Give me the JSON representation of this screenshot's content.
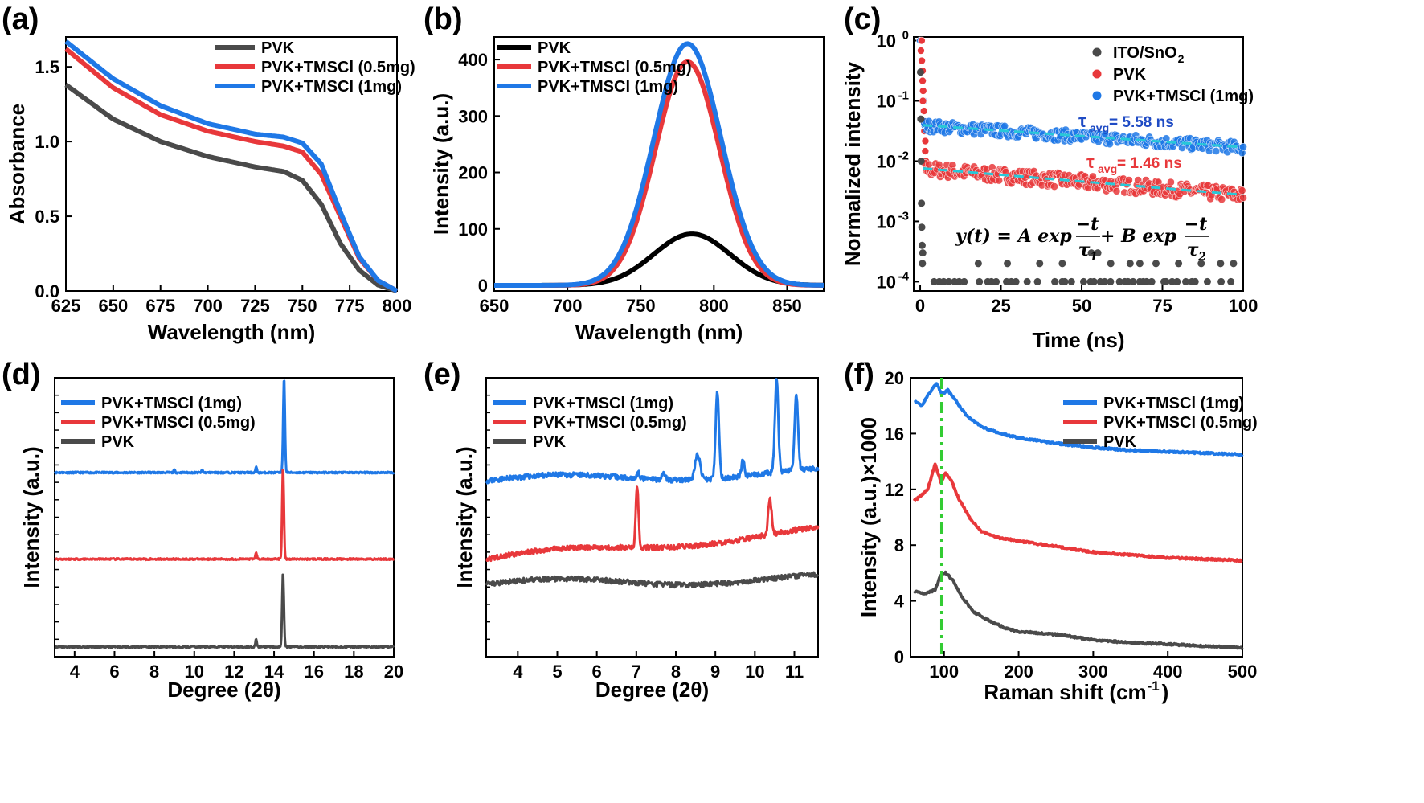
{
  "colors": {
    "black": "#000000",
    "gray": "#4a4a4a",
    "red": "#e8383b",
    "blue": "#1f78e6",
    "cyan": "#28c8d8",
    "green": "#33cc33"
  },
  "chart_data": [
    {
      "id": "a",
      "type": "line",
      "panel_label": "(a)",
      "xlabel": "Wavelength (nm)",
      "ylabel": "Absorbance",
      "xlim": [
        625,
        800
      ],
      "ylim": [
        0,
        1.7
      ],
      "xticks": [
        625,
        650,
        675,
        700,
        725,
        750,
        775,
        800
      ],
      "yticks": [
        0.0,
        0.5,
        1.0,
        1.5
      ],
      "legend": "top-right",
      "series": [
        {
          "name": "PVK",
          "color": "#4a4a4a",
          "x": [
            625,
            650,
            675,
            700,
            725,
            740,
            750,
            760,
            770,
            780,
            790,
            800
          ],
          "y": [
            1.38,
            1.15,
            1.0,
            0.9,
            0.83,
            0.8,
            0.74,
            0.58,
            0.32,
            0.14,
            0.04,
            0.0
          ]
        },
        {
          "name": "PVK+TMSCl (0.5mg)",
          "color": "#e8383b",
          "x": [
            625,
            650,
            675,
            700,
            725,
            740,
            750,
            760,
            770,
            780,
            790,
            800
          ],
          "y": [
            1.62,
            1.36,
            1.18,
            1.07,
            1.0,
            0.97,
            0.93,
            0.78,
            0.5,
            0.22,
            0.07,
            0.0
          ]
        },
        {
          "name": "PVK+TMSCl (1mg)",
          "color": "#1f78e6",
          "x": [
            625,
            650,
            675,
            700,
            725,
            740,
            750,
            760,
            770,
            780,
            790,
            800
          ],
          "y": [
            1.67,
            1.42,
            1.24,
            1.12,
            1.05,
            1.03,
            0.99,
            0.85,
            0.53,
            0.23,
            0.07,
            0.0
          ]
        }
      ]
    },
    {
      "id": "b",
      "type": "line",
      "panel_label": "(b)",
      "xlabel": "Wavelength (nm)",
      "ylabel": "Intensity (a.u.)",
      "xlim": [
        650,
        875
      ],
      "ylim": [
        -10,
        440
      ],
      "xticks": [
        650,
        700,
        750,
        800,
        850
      ],
      "yticks": [
        0,
        100,
        200,
        300,
        400
      ],
      "legend": "top-left",
      "series": [
        {
          "name": "PVK",
          "color": "#000000",
          "peak_x": 785,
          "peak_y": 91,
          "width": 26
        },
        {
          "name": "PVK+TMSCl (0.5mg)",
          "color": "#e8383b",
          "peak_x": 782,
          "peak_y": 396,
          "width": 22
        },
        {
          "name": "PVK+TMSCl (1mg)",
          "color": "#1f78e6",
          "peak_x": 782,
          "peak_y": 428,
          "width": 23
        }
      ]
    },
    {
      "id": "c",
      "type": "scatter",
      "panel_label": "(c)",
      "xlabel": "Time (ns)",
      "ylabel": "Normalized intensity",
      "xlim": [
        -2,
        100
      ],
      "ylim": [
        7e-05,
        1.15
      ],
      "yscale": "log",
      "xticks": [
        0,
        25,
        50,
        75,
        100
      ],
      "yticks": [
        {
          "value": 1,
          "label": "10",
          "exp": "0"
        },
        {
          "value": 0.1,
          "label": "10",
          "exp": "-1"
        },
        {
          "value": 0.01,
          "label": "10",
          "exp": "-2"
        },
        {
          "value": 0.001,
          "label": "10",
          "exp": "-3"
        },
        {
          "value": 0.0001,
          "label": "10",
          "exp": "-4"
        }
      ],
      "legend": "top-right",
      "series": [
        {
          "name_main": "ITO/SnO",
          "name_sub": "2",
          "color": "#4a4a4a",
          "start": 0.002,
          "floor": 0.0001
        },
        {
          "name_main": "PVK",
          "name_sub": "",
          "color": "#e8383b",
          "amp": 0.0075,
          "tau": 98
        },
        {
          "name_main": "PVK+TMSCl (1mg)",
          "name_sub": "",
          "color": "#1f78e6",
          "amp": 0.039,
          "tau": 118
        }
      ],
      "fit_color": "#28c8d8",
      "annotations": [
        {
          "symbol": "τ",
          "sub": "avg",
          "value": "= 5.58 ns",
          "color": "#1f4bc4"
        },
        {
          "symbol": "τ",
          "sub": "avg",
          "value": "= 1.46 ns",
          "color": "#e8383b"
        }
      ],
      "formula": "y(t) = A exp(−t/τ1) + B exp(−t/τ2)",
      "formula_parts": {
        "lhs": "y(t) = A exp",
        "plus": "+ B exp",
        "num": "−t",
        "den1": "τ",
        "den1_sub": "1",
        "den2": "τ",
        "den2_sub": "2"
      }
    },
    {
      "id": "d",
      "type": "line",
      "panel_label": "(d)",
      "xlabel": "Degree (2θ)",
      "ylabel": "Intensity (a.u.)",
      "xlim": [
        3,
        20
      ],
      "ylim": [
        0,
        1
      ],
      "xticks": [
        4,
        6,
        8,
        10,
        12,
        14,
        16,
        18,
        20
      ],
      "legend": "top-left",
      "series": [
        {
          "name": "PVK+TMSCl (1mg)",
          "color": "#1f78e6",
          "baseline": 0.66,
          "peaks": [
            [
              14.5,
              0.34,
              0.06
            ],
            [
              13.1,
              0.02,
              0.05
            ],
            [
              10.4,
              0.01,
              0.05
            ],
            [
              9.0,
              0.01,
              0.05
            ]
          ]
        },
        {
          "name": "PVK+TMSCl (0.5mg)",
          "color": "#e8383b",
          "baseline": 0.35,
          "peaks": [
            [
              14.45,
              0.33,
              0.06
            ],
            [
              13.1,
              0.025,
              0.05
            ]
          ]
        },
        {
          "name": "PVK",
          "color": "#4a4a4a",
          "baseline": 0.035,
          "peaks": [
            [
              14.45,
              0.27,
              0.06
            ],
            [
              13.1,
              0.03,
              0.05
            ]
          ]
        }
      ]
    },
    {
      "id": "e",
      "type": "line",
      "panel_label": "(e)",
      "xlabel": "Degree (2θ)",
      "ylabel": "Intensity (a.u.)",
      "xlim": [
        3.2,
        11.6
      ],
      "ylim": [
        0,
        1
      ],
      "xticks": [
        4,
        5,
        6,
        7,
        8,
        9,
        10,
        11
      ],
      "legend": "top-left",
      "series": [
        {
          "name": "PVK+TMSCl (1mg)",
          "color": "#1f78e6",
          "base_start": 0.63,
          "base_end": 0.66,
          "peaks": [
            [
              8.55,
              0.09,
              0.09
            ],
            [
              9.05,
              0.31,
              0.06
            ],
            [
              9.7,
              0.06,
              0.05
            ],
            [
              10.55,
              0.34,
              0.06
            ],
            [
              11.05,
              0.27,
              0.06
            ],
            [
              7.7,
              0.025,
              0.06
            ],
            [
              7.05,
              0.02,
              0.05
            ]
          ]
        },
        {
          "name": "PVK+TMSCl (0.5mg)",
          "color": "#e8383b",
          "base_start": 0.35,
          "base_end": 0.45,
          "peaks": [
            [
              7.02,
              0.22,
              0.05
            ],
            [
              10.38,
              0.13,
              0.06
            ]
          ]
        },
        {
          "name": "PVK",
          "color": "#4a4a4a",
          "base_start": 0.26,
          "base_end": 0.28,
          "peaks": []
        }
      ]
    },
    {
      "id": "f",
      "type": "line",
      "panel_label": "(f)",
      "xlabel": "Raman shift (cm",
      "xlabel_sup": "-1",
      "xlabel_end": ")",
      "ylabel": "Intensity (a.u.)×1000",
      "xlim": [
        55,
        500
      ],
      "ylim": [
        0,
        20
      ],
      "xticks": [
        100,
        200,
        300,
        400,
        500
      ],
      "yticks": [
        0,
        4,
        8,
        12,
        16,
        20
      ],
      "legend": "top-right",
      "marker_line": {
        "x": 97,
        "color": "#33cc33"
      },
      "series": [
        {
          "name": "PVK+TMSCl (1mg)",
          "color": "#1f78e6",
          "x": [
            60,
            70,
            80,
            90,
            97,
            105,
            115,
            130,
            150,
            175,
            200,
            250,
            300,
            350,
            400,
            450,
            500
          ],
          "y": [
            18.3,
            18.0,
            18.9,
            19.6,
            18.8,
            19.1,
            18.4,
            17.3,
            16.5,
            16.0,
            15.7,
            15.3,
            15.0,
            14.8,
            14.7,
            14.6,
            14.5
          ]
        },
        {
          "name": "PVK+TMSCl (0.5mg)",
          "color": "#e8383b",
          "x": [
            60,
            68,
            78,
            88,
            96,
            102,
            110,
            120,
            135,
            150,
            175,
            200,
            250,
            300,
            350,
            400,
            450,
            500
          ],
          "y": [
            11.2,
            11.5,
            12.0,
            13.8,
            12.5,
            13.2,
            12.6,
            11.3,
            9.9,
            9.0,
            8.5,
            8.3,
            7.9,
            7.5,
            7.3,
            7.1,
            7.0,
            6.9
          ]
        },
        {
          "name": "PVK",
          "color": "#4a4a4a",
          "x": [
            60,
            75,
            88,
            96,
            102,
            112,
            125,
            140,
            160,
            180,
            200,
            250,
            300,
            350,
            400,
            450,
            500
          ],
          "y": [
            4.7,
            4.5,
            4.8,
            5.9,
            6.0,
            5.5,
            4.2,
            3.2,
            2.6,
            2.1,
            1.8,
            1.6,
            1.2,
            1.0,
            0.9,
            0.75,
            0.65
          ]
        }
      ]
    }
  ]
}
